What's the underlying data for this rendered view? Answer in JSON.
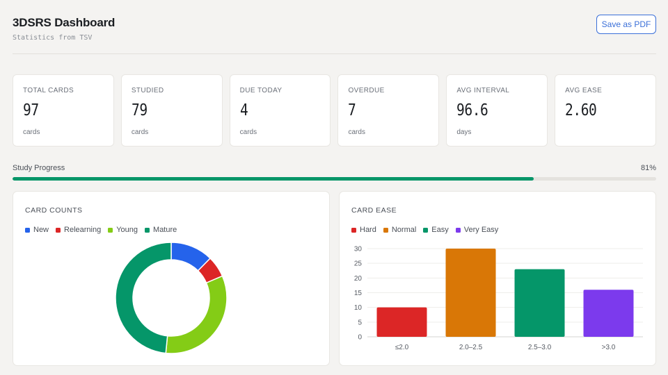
{
  "header": {
    "title": "3DSRS Dashboard",
    "subtitle": "Statistics from TSV",
    "save_pdf_label": "Save as PDF"
  },
  "stats": [
    {
      "label": "TOTAL CARDS",
      "value": "97",
      "unit": "cards"
    },
    {
      "label": "STUDIED",
      "value": "79",
      "unit": "cards"
    },
    {
      "label": "DUE TODAY",
      "value": "4",
      "unit": "cards"
    },
    {
      "label": "OVERDUE",
      "value": "7",
      "unit": "cards"
    },
    {
      "label": "AVG INTERVAL",
      "value": "96.6",
      "unit": "days"
    },
    {
      "label": "AVG EASE",
      "value": "2.60",
      "unit": ""
    }
  ],
  "progress": {
    "label": "Study Progress",
    "percent_text": "81%",
    "fraction": 0.81,
    "color": "#079669"
  },
  "card_counts": {
    "title": "CARD COUNTS",
    "legend": [
      {
        "name": "New",
        "color": "#2563eb"
      },
      {
        "name": "Relearning",
        "color": "#dc2626"
      },
      {
        "name": "Young",
        "color": "#84cc16"
      },
      {
        "name": "Mature",
        "color": "#059669"
      }
    ]
  },
  "card_ease": {
    "title": "CARD EASE",
    "legend": [
      {
        "name": "Hard",
        "color": "#dc2626"
      },
      {
        "name": "Normal",
        "color": "#d97706"
      },
      {
        "name": "Easy",
        "color": "#059669"
      },
      {
        "name": "Very Easy",
        "color": "#7c3aed"
      }
    ]
  },
  "chart_data": [
    {
      "type": "pie",
      "title": "CARD COUNTS",
      "categories": [
        "New",
        "Relearning",
        "Young",
        "Mature"
      ],
      "values": [
        12,
        6,
        32,
        47
      ],
      "colors": [
        "#2563eb",
        "#dc2626",
        "#84cc16",
        "#059669"
      ],
      "donut": true,
      "legend": "top-left"
    },
    {
      "type": "bar",
      "title": "CARD EASE",
      "categories": [
        "≤2.0",
        "2.0–2.5",
        "2.5–3.0",
        ">3.0"
      ],
      "values": [
        10,
        30,
        23,
        16
      ],
      "colors": [
        "#dc2626",
        "#d97706",
        "#059669",
        "#7c3aed"
      ],
      "ylim": [
        0,
        30
      ],
      "yticks": [
        0,
        5,
        10,
        15,
        20,
        25,
        30
      ],
      "grid": true,
      "legend": "top-left"
    }
  ]
}
